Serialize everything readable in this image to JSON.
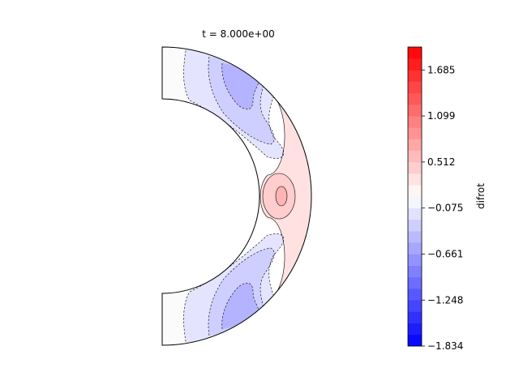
{
  "chart_data": {
    "type": "contour",
    "title": "t = 8.000e+00",
    "geometry": "meridional half-annulus (spherical shell)",
    "colorbar": {
      "label": "difrot",
      "colormap": "bwr",
      "vmin": -1.834,
      "vmax": 1.978,
      "levels": 26,
      "tick_labels": [
        "1.685",
        "1.099",
        "0.512",
        "−0.075",
        "−0.661",
        "−1.248",
        "−1.834"
      ],
      "tick_values": [
        1.685,
        1.099,
        0.512,
        -0.075,
        -0.661,
        -1.248,
        -1.834
      ]
    },
    "features": [
      {
        "region": "equatorial outer",
        "sign": "positive",
        "peak_value": 0.5
      },
      {
        "region": "mid-latitude north",
        "sign": "negative",
        "peak_value": -0.6
      },
      {
        "region": "mid-latitude south",
        "sign": "negative",
        "peak_value": -0.6
      },
      {
        "region": "polar",
        "sign": "near zero",
        "peak_value": 0.0
      }
    ]
  },
  "colors": {
    "positive_max": "#ff0000",
    "negative_max": "#0000ff",
    "neutral": "#ffffff"
  }
}
